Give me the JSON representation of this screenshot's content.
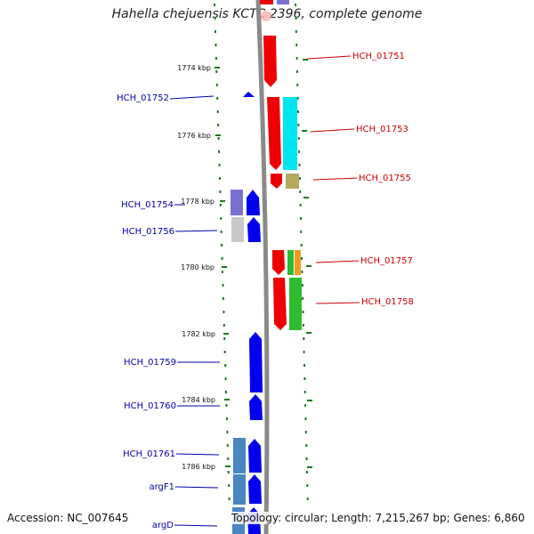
{
  "title": "Hahella chejuensis KCTC 2396, complete genome",
  "footer": {
    "accession": "Accession: NC_007645",
    "summary": "Topology: circular; Length: 7,215,267 bp; Genes: 6,860"
  },
  "colors": {
    "forward": "#ee0000",
    "reverse": "#0000ee",
    "cyan": "#00e5ee",
    "olive": "#b5a860",
    "purple": "#7a70d0",
    "gray": "#c8c8c8",
    "steel": "#4a86c0",
    "orange": "#f09a20",
    "green": "#30bb30",
    "tick": "#1a7a1a",
    "backbone": "#8a8a8a"
  },
  "scale_labels": [
    "1774 kbp",
    "1776 kbp",
    "1778 kbp",
    "1780 kbp",
    "1782 kbp",
    "1784 kbp",
    "1786 kbp"
  ],
  "right_genes": [
    "HCH_01751",
    "HCH_01753",
    "HCH_01755",
    "HCH_01757",
    "HCH_01758"
  ],
  "left_genes": [
    "HCH_01752",
    "HCH_01754",
    "HCH_01756",
    "HCH_01759",
    "HCH_01760",
    "HCH_01761",
    "argF1",
    "argD"
  ]
}
